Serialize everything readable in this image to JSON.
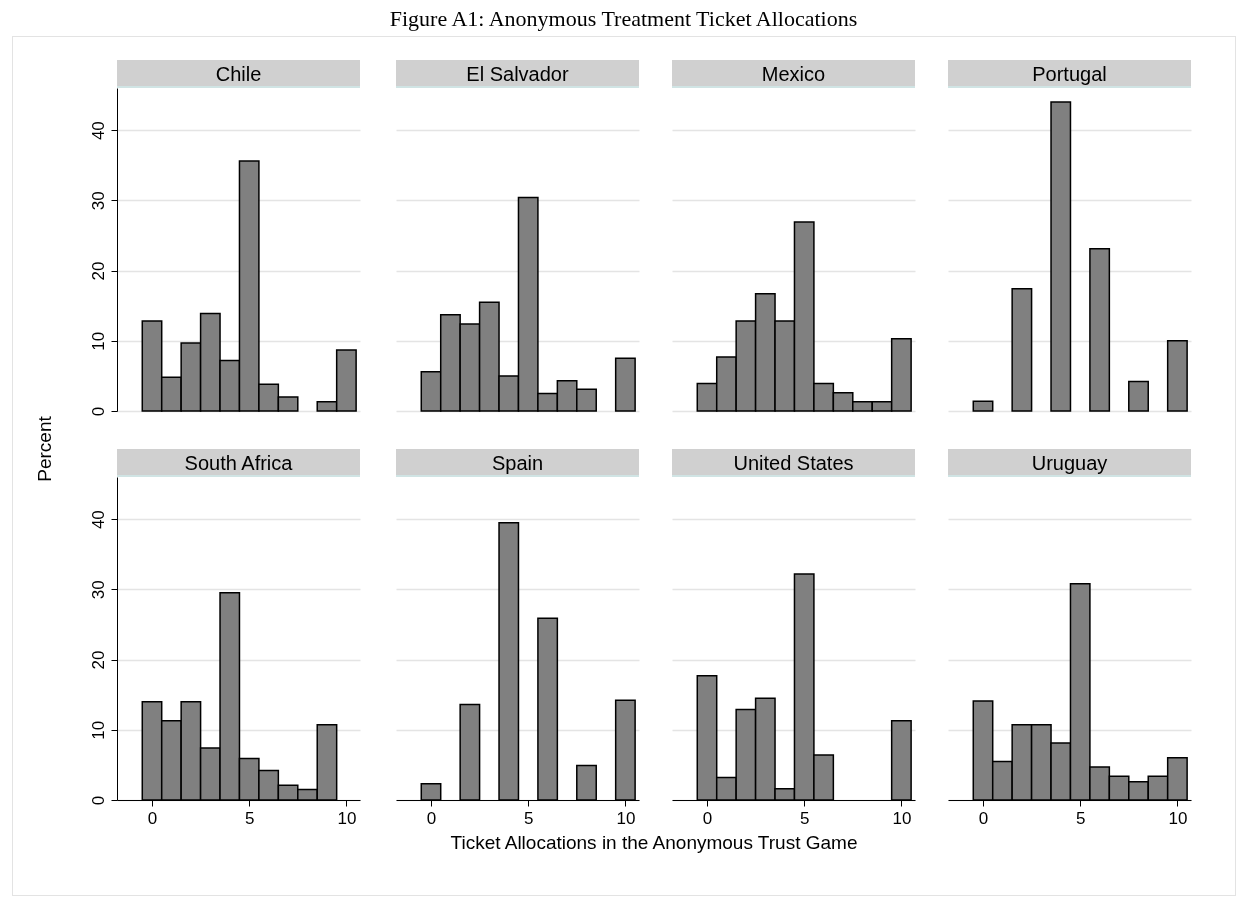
{
  "chart_data": [
    {
      "type": "other",
      "title": "Figure A1: Anonymous Treatment Ticket Allocations",
      "xlabel": "Ticket Allocations in the Anonymous Trust Game",
      "ylabel": "Percent"
    },
    {
      "type": "histogram",
      "title": "Chile",
      "bins": [
        -0.5,
        0.5,
        1.5,
        2.5,
        3.5,
        4.5,
        5.5,
        6.5,
        7.5,
        8.5,
        9.5,
        10.5
      ],
      "values": [
        12.8,
        4.8,
        9.7,
        13.9,
        7.2,
        35.6,
        3.8,
        2.0,
        0,
        1.3,
        8.7
      ],
      "color": "#808080",
      "xlim": [
        -1.8,
        10.7
      ],
      "xticks": [
        0,
        5,
        10
      ],
      "ylim": [
        0,
        46
      ],
      "yticks": [
        0,
        10,
        20,
        30,
        40
      ],
      "grid": "y",
      "tick_labels": "y"
    },
    {
      "type": "histogram",
      "title": "El Salvador",
      "bins": [
        -0.5,
        0.5,
        1.5,
        2.5,
        3.5,
        4.5,
        5.5,
        6.5,
        7.5,
        8.5,
        9.5,
        10.5
      ],
      "values": [
        5.6,
        13.7,
        12.4,
        15.5,
        5.0,
        30.4,
        2.5,
        4.3,
        3.1,
        0,
        7.5
      ],
      "color": "#808080",
      "xlim": [
        -1.8,
        10.7
      ],
      "xticks": [
        0,
        5,
        10
      ],
      "ylim": [
        0,
        46
      ],
      "yticks": [
        0,
        10,
        20,
        30,
        40
      ],
      "grid": "y",
      "tick_labels": false
    },
    {
      "type": "histogram",
      "title": "Mexico",
      "bins": [
        -0.5,
        0.5,
        1.5,
        2.5,
        3.5,
        4.5,
        5.5,
        6.5,
        7.5,
        8.5,
        9.5,
        10.5
      ],
      "values": [
        3.9,
        7.7,
        12.8,
        16.7,
        12.8,
        26.9,
        3.9,
        2.6,
        1.3,
        1.3,
        10.3
      ],
      "color": "#808080",
      "xlim": [
        -1.8,
        10.7
      ],
      "xticks": [
        0,
        5,
        10
      ],
      "ylim": [
        0,
        46
      ],
      "yticks": [
        0,
        10,
        20,
        30,
        40
      ],
      "grid": "y",
      "tick_labels": false
    },
    {
      "type": "histogram",
      "title": "Portugal",
      "bins": [
        -0.5,
        0.5,
        1.5,
        2.5,
        3.5,
        4.5,
        5.5,
        6.5,
        7.5,
        8.5,
        9.5,
        10.5
      ],
      "values": [
        1.4,
        0,
        17.4,
        0,
        44.0,
        0,
        23.1,
        0,
        4.2,
        0,
        10.0
      ],
      "color": "#808080",
      "xlim": [
        -1.8,
        10.7
      ],
      "xticks": [
        0,
        5,
        10
      ],
      "ylim": [
        0,
        46
      ],
      "yticks": [
        0,
        10,
        20,
        30,
        40
      ],
      "grid": "y",
      "tick_labels": false
    },
    {
      "type": "histogram",
      "title": "South Africa",
      "bins": [
        -0.5,
        0.5,
        1.5,
        2.5,
        3.5,
        4.5,
        5.5,
        6.5,
        7.5,
        8.5,
        9.5,
        10.5
      ],
      "values": [
        14.0,
        11.3,
        14.0,
        7.4,
        29.5,
        5.9,
        4.2,
        2.1,
        1.5,
        10.7,
        0
      ],
      "color": "#808080",
      "xlim": [
        -1.8,
        10.7
      ],
      "xticks": [
        0,
        5,
        10
      ],
      "ylim": [
        0,
        46
      ],
      "yticks": [
        0,
        10,
        20,
        30,
        40
      ],
      "grid": "y"
    },
    {
      "type": "histogram",
      "title": "Spain",
      "bins": [
        -0.5,
        0.5,
        1.5,
        2.5,
        3.5,
        4.5,
        5.5,
        6.5,
        7.5,
        8.5,
        9.5,
        10.5
      ],
      "values": [
        2.3,
        0,
        13.6,
        0,
        39.5,
        0,
        25.9,
        0,
        4.9,
        0,
        14.2
      ],
      "color": "#808080",
      "xlim": [
        -1.8,
        10.7
      ],
      "xticks": [
        0,
        5,
        10
      ],
      "ylim": [
        0,
        46
      ],
      "yticks": [
        0,
        10,
        20,
        30,
        40
      ],
      "grid": "y",
      "tick_labels": "x"
    },
    {
      "type": "histogram",
      "title": "United States",
      "bins": [
        -0.5,
        0.5,
        1.5,
        2.5,
        3.5,
        4.5,
        5.5,
        6.5,
        7.5,
        8.5,
        9.5,
        10.5
      ],
      "values": [
        17.7,
        3.2,
        12.9,
        14.5,
        1.6,
        32.2,
        6.4,
        0,
        0,
        0,
        11.3
      ],
      "color": "#808080",
      "xlim": [
        -1.8,
        10.7
      ],
      "xticks": [
        0,
        5,
        10
      ],
      "ylim": [
        0,
        46
      ],
      "yticks": [
        0,
        10,
        20,
        30,
        40
      ],
      "grid": "y",
      "tick_labels": "x"
    },
    {
      "type": "histogram",
      "title": "Uruguay",
      "bins": [
        -0.5,
        0.5,
        1.5,
        2.5,
        3.5,
        4.5,
        5.5,
        6.5,
        7.5,
        8.5,
        9.5,
        10.5
      ],
      "values": [
        14.1,
        5.5,
        10.7,
        10.7,
        8.1,
        30.8,
        4.7,
        3.4,
        2.6,
        3.4,
        6.0
      ],
      "color": "#808080",
      "xlim": [
        -1.8,
        10.7
      ],
      "xticks": [
        0,
        5,
        10
      ],
      "ylim": [
        0,
        46
      ],
      "yticks": [
        0,
        10,
        20,
        30,
        40
      ],
      "grid": "y",
      "tick_labels": "x"
    }
  ]
}
